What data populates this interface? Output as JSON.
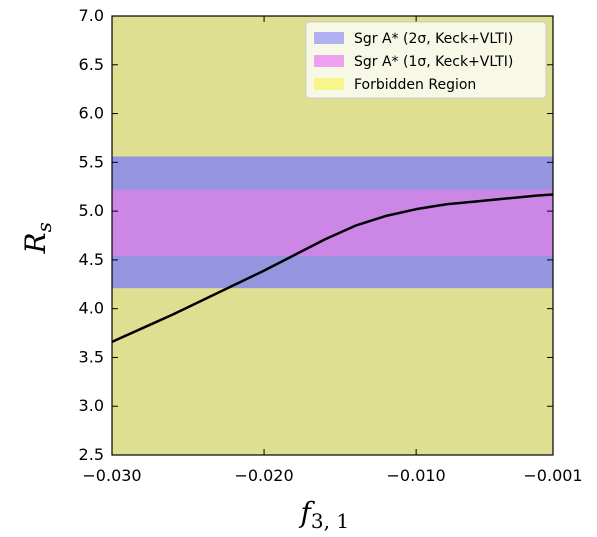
{
  "chart_data": {
    "type": "line",
    "xlabel_main": "f",
    "xlabel_sub": "3, 1",
    "ylabel_main": "R",
    "ylabel_sub": "s",
    "xlim": [
      -0.03,
      -0.001
    ],
    "ylim": [
      2.5,
      7.0
    ],
    "x_ticks": [
      -0.03,
      -0.02,
      -0.01,
      -0.001
    ],
    "x_tick_labels": [
      "−0.030",
      "−0.020",
      "−0.010",
      "−0.001"
    ],
    "y_ticks": [
      2.5,
      3.0,
      3.5,
      4.0,
      4.5,
      5.0,
      5.5,
      6.0,
      6.5,
      7.0
    ],
    "y_tick_labels": [
      "2.5",
      "3.0",
      "3.5",
      "4.0",
      "4.5",
      "5.0",
      "5.5",
      "6.0",
      "6.5",
      "7.0"
    ],
    "grid": false,
    "legend_position": "top-right",
    "bands": [
      {
        "name": "Sgr A* (2σ, Keck+VLTI)",
        "y_range": [
          4.21,
          5.56
        ],
        "color": "#9595df"
      },
      {
        "name": "Sgr A* (1σ, Keck+VLTI)",
        "y_range": [
          4.54,
          5.22
        ],
        "color": "#cc86e6"
      },
      {
        "name": "Forbidden Region",
        "y_range": [
          2.5,
          7.0
        ],
        "color": "#dfdf91"
      }
    ],
    "legend_swatch_colors": [
      "#b1b1f2",
      "#eea0ee",
      "#f6f68a"
    ],
    "series": [
      {
        "color": "#000000",
        "x": [
          -0.03,
          -0.028,
          -0.026,
          -0.024,
          -0.022,
          -0.02,
          -0.018,
          -0.016,
          -0.014,
          -0.012,
          -0.01,
          -0.008,
          -0.006,
          -0.004,
          -0.002,
          -0.001
        ],
        "y": [
          3.66,
          3.8,
          3.94,
          4.09,
          4.24,
          4.39,
          4.55,
          4.71,
          4.85,
          4.95,
          5.02,
          5.07,
          5.1,
          5.13,
          5.16,
          5.17
        ]
      }
    ]
  }
}
